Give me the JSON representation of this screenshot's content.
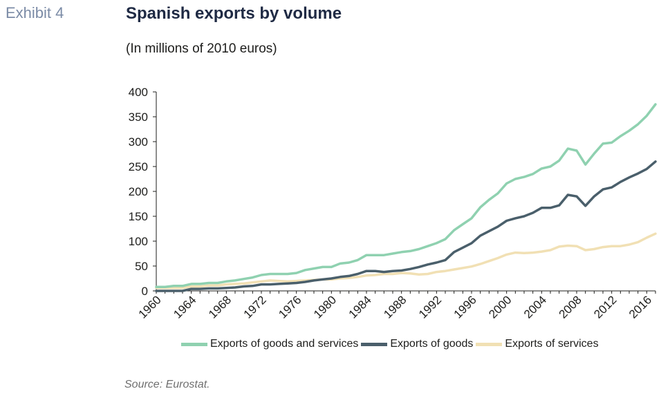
{
  "exhibit": "Exhibit 4",
  "title": "Spanish exports by volume",
  "subtitle": "(In millions of 2010 euros)",
  "source": "Source: Eurostat.",
  "chart_data": {
    "type": "line",
    "title": "Spanish exports by volume",
    "xlabel": "",
    "ylabel": "",
    "ylim": [
      0,
      400
    ],
    "yticks": [
      "0",
      "50",
      "100",
      "150",
      "200",
      "250",
      "300",
      "350",
      "400"
    ],
    "xticks": [
      "1960",
      "1964",
      "1968",
      "1972",
      "1976",
      "1980",
      "1984",
      "1988",
      "1992",
      "1996",
      "2000",
      "2004",
      "2008",
      "2012",
      "2016"
    ],
    "grid": false,
    "legend_position": "bottom",
    "x": [
      1960,
      1961,
      1962,
      1963,
      1964,
      1965,
      1966,
      1967,
      1968,
      1969,
      1970,
      1971,
      1972,
      1973,
      1974,
      1975,
      1976,
      1977,
      1978,
      1979,
      1980,
      1981,
      1982,
      1983,
      1984,
      1985,
      1986,
      1987,
      1988,
      1989,
      1990,
      1991,
      1992,
      1993,
      1994,
      1995,
      1996,
      1997,
      1998,
      1999,
      2000,
      2001,
      2002,
      2003,
      2004,
      2005,
      2006,
      2007,
      2008,
      2009,
      2010,
      2011,
      2012,
      2013,
      2014,
      2015,
      2016,
      2017
    ],
    "series": [
      {
        "name": "Exports of goods and services",
        "color": "#8fd1b0",
        "values": [
          8,
          8,
          10,
          10,
          14,
          14,
          16,
          16,
          19,
          21,
          24,
          27,
          32,
          34,
          34,
          34,
          36,
          42,
          45,
          48,
          48,
          55,
          57,
          62,
          72,
          72,
          72,
          75,
          78,
          80,
          84,
          90,
          96,
          104,
          122,
          134,
          146,
          168,
          183,
          196,
          216,
          225,
          229,
          235,
          246,
          250,
          262,
          286,
          282,
          254,
          276,
          296,
          298,
          311,
          322,
          335,
          352,
          375
        ]
      },
      {
        "name": "Exports of goods",
        "color": "#4a5f6b",
        "values": [
          0,
          0,
          0,
          0,
          4,
          4,
          5,
          5,
          6,
          7,
          9,
          10,
          13,
          13,
          14,
          15,
          16,
          18,
          21,
          23,
          25,
          28,
          30,
          34,
          40,
          40,
          38,
          40,
          41,
          44,
          48,
          53,
          57,
          62,
          78,
          87,
          96,
          111,
          120,
          129,
          141,
          146,
          150,
          157,
          167,
          167,
          172,
          193,
          190,
          171,
          190,
          204,
          208,
          219,
          228,
          236,
          245,
          260
        ]
      },
      {
        "name": "Exports of services",
        "color": "#f1e0b4",
        "values": [
          6,
          6,
          6,
          6,
          9,
          9,
          11,
          11,
          13,
          14,
          15,
          17,
          19,
          21,
          20,
          19,
          20,
          21,
          22,
          23,
          23,
          25,
          26,
          28,
          31,
          32,
          34,
          34,
          36,
          35,
          33,
          34,
          38,
          40,
          43,
          46,
          49,
          54,
          60,
          66,
          73,
          77,
          76,
          77,
          79,
          82,
          89,
          91,
          90,
          82,
          84,
          88,
          90,
          90,
          93,
          98,
          107,
          115
        ]
      }
    ]
  }
}
